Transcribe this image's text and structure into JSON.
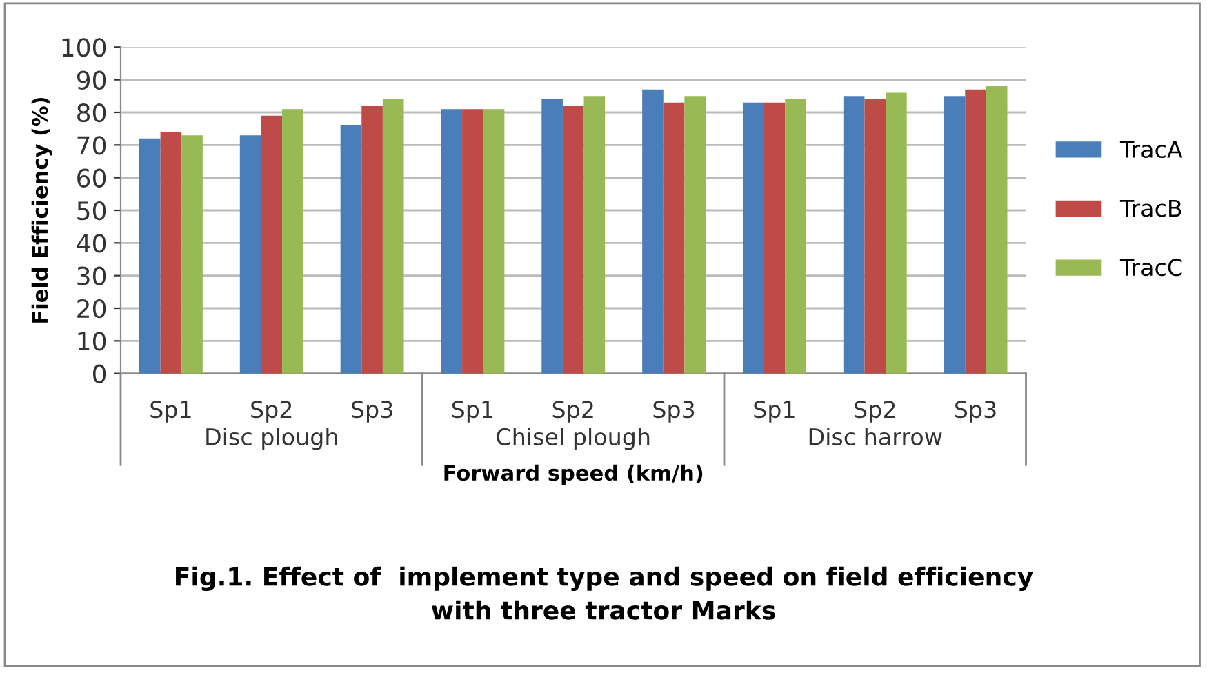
{
  "chart_data": {
    "type": "bar",
    "title": "Fig.1. Effect of  implement type and speed on field efficiency\nwith three tractor Marks",
    "xlabel": "Forward speed (km/h)",
    "ylabel": "Field Efficiency (%)",
    "categories": [
      "Sp1",
      "Sp2",
      "Sp3",
      "Sp1",
      "Sp2",
      "Sp3",
      "Sp1",
      "Sp2",
      "Sp3"
    ],
    "annotations": [
      "Disc plough",
      "Chisel plough",
      "Disc harrow"
    ],
    "series": [
      {
        "name": "TracA",
        "color": "#4a7ebb",
        "values": [
          72,
          73,
          76,
          81,
          84,
          87,
          83,
          85,
          85
        ]
      },
      {
        "name": "TracB",
        "color": "#be4b48",
        "values": [
          74,
          79,
          82,
          81,
          82,
          83,
          83,
          84,
          87
        ]
      },
      {
        "name": "TracC",
        "color": "#98b954",
        "values": [
          73,
          81,
          84,
          81,
          85,
          85,
          84,
          86,
          88
        ]
      }
    ],
    "ylim": [
      0,
      100
    ],
    "yticks": [
      0,
      10,
      20,
      30,
      40,
      50,
      60,
      70,
      80,
      90,
      100
    ],
    "grid": "y",
    "legend": "right"
  }
}
